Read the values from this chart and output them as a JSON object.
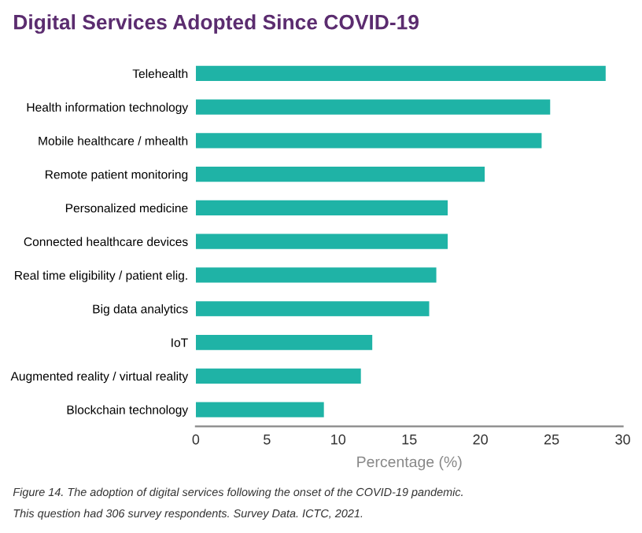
{
  "chart_data": {
    "type": "bar",
    "orientation": "horizontal",
    "title": "Digital Services Adopted Since COVID-19",
    "xlabel": "Percentage (%)",
    "categories": [
      "Telehealth",
      "Health information technology",
      "Mobile healthcare / mhealth",
      "Remote patient monitoring",
      "Personalized medicine",
      "Connected healthcare devices",
      "Real time eligibility / patient elig.",
      "Big data analytics",
      "IoT",
      "Augmented reality / virtual reality",
      "Blockchain technology"
    ],
    "values": [
      28.8,
      24.9,
      24.3,
      20.3,
      17.7,
      17.7,
      16.9,
      16.4,
      12.4,
      11.6,
      9.0
    ],
    "color": "#1fb3a6",
    "xlim": [
      0,
      30
    ],
    "xticks": [
      0,
      5,
      10,
      15,
      20,
      25,
      30
    ],
    "grid": false,
    "legend": false,
    "annotations": [
      "Figure 14. The adoption of digital services following the onset of the COVID-19 pandemic.",
      "This question had 306 survey respondents. Survey Data. ICTC, 2021."
    ]
  }
}
